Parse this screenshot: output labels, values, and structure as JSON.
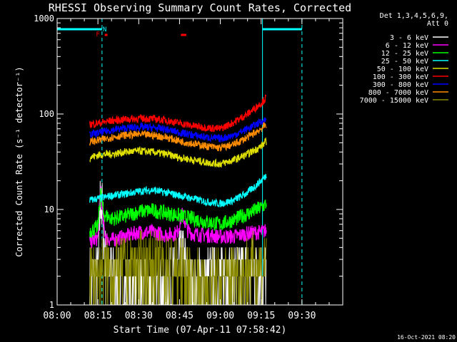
{
  "chart_data": {
    "type": "line",
    "title": "RHESSI Observing Summary Count Rates, Corrected",
    "xlabel": "Start Time (07-Apr-11 07:58:42)",
    "ylabel": "Corrected Count Rate (s⁻¹ detector⁻¹)",
    "x_ticks": [
      "08:00",
      "08:15",
      "08:30",
      "08:45",
      "09:00",
      "09:15",
      "09:30"
    ],
    "x_tick_minutes": [
      0,
      15,
      30,
      45,
      60,
      75,
      90
    ],
    "y_ticks": [
      "1",
      "10",
      "100",
      "1000"
    ],
    "y_tick_values": [
      1,
      10,
      100,
      1000
    ],
    "yscale": "log",
    "ylim": [
      1,
      1000
    ],
    "xlim_minutes": [
      0,
      105
    ],
    "grid": false,
    "legend": {
      "placement": "right",
      "header": [
        "Det 1,3,4,5,6,9,",
        "Att 0"
      ]
    },
    "series": [
      {
        "name": "3 - 6 keV",
        "color": "#ffffff",
        "x": [
          12,
          15,
          16,
          17,
          18,
          20,
          25,
          30,
          35,
          40,
          44,
          46,
          48,
          50,
          55,
          60,
          65,
          70,
          75,
          77
        ],
        "values": [
          1.8,
          2.0,
          16,
          6,
          2.5,
          2.0,
          1.6,
          1.4,
          1.4,
          1.4,
          2.2,
          3.2,
          2.0,
          1.6,
          1.8,
          2.0,
          2.0,
          2.2,
          2.4,
          2.2
        ]
      },
      {
        "name": "6 - 12 keV",
        "color": "#ff00ff",
        "x": [
          12,
          15,
          16,
          17,
          18,
          20,
          25,
          30,
          35,
          40,
          44,
          46,
          48,
          50,
          55,
          60,
          65,
          70,
          75,
          77
        ],
        "values": [
          4.5,
          5.0,
          18,
          7,
          5.0,
          4.8,
          5.2,
          5.8,
          5.8,
          5.4,
          5.6,
          9.0,
          6.0,
          5.5,
          5.4,
          5.2,
          5.2,
          5.6,
          5.8,
          6.0
        ]
      },
      {
        "name": "12 - 25 keV",
        "color": "#00ff00",
        "x": [
          12,
          15,
          16,
          17,
          20,
          25,
          30,
          35,
          40,
          45,
          50,
          55,
          60,
          65,
          70,
          75,
          77
        ],
        "values": [
          6.0,
          6.5,
          16,
          9,
          8.0,
          8.5,
          9.5,
          9.8,
          9.2,
          8.6,
          8.0,
          7.4,
          7.0,
          7.8,
          9.0,
          10.5,
          11.5
        ]
      },
      {
        "name": "25 - 50 keV",
        "color": "#00ffff",
        "x": [
          12,
          15,
          18,
          20,
          25,
          30,
          35,
          40,
          45,
          50,
          55,
          60,
          65,
          70,
          75,
          77
        ],
        "values": [
          12.5,
          13,
          13.5,
          14,
          14.5,
          15.5,
          16,
          15,
          14,
          13,
          12,
          11.5,
          12.5,
          15,
          20,
          23
        ]
      },
      {
        "name": "50 - 100 keV",
        "color": "#e0e000",
        "x": [
          12,
          15,
          18,
          20,
          25,
          30,
          35,
          40,
          45,
          50,
          55,
          60,
          65,
          70,
          75,
          77
        ],
        "values": [
          35,
          37,
          38,
          38,
          40,
          41,
          40,
          38,
          35,
          33,
          31,
          30,
          33,
          38,
          46,
          52
        ]
      },
      {
        "name": "100 - 300 keV",
        "color": "#ff0000",
        "x": [
          12,
          15,
          18,
          20,
          25,
          30,
          35,
          40,
          45,
          50,
          55,
          60,
          65,
          70,
          75,
          77
        ],
        "values": [
          78,
          80,
          83,
          85,
          88,
          90,
          89,
          86,
          80,
          75,
          72,
          70,
          82,
          100,
          130,
          150
        ]
      },
      {
        "name": "300 - 800 keV",
        "color": "#0000ff",
        "x": [
          12,
          15,
          18,
          20,
          25,
          30,
          35,
          40,
          45,
          50,
          55,
          60,
          65,
          70,
          75,
          77
        ],
        "values": [
          61,
          63,
          66,
          68,
          71,
          73,
          72,
          69,
          64,
          60,
          57,
          55,
          60,
          70,
          83,
          88
        ]
      },
      {
        "name": "800 - 7000 keV",
        "color": "#ff8c00",
        "x": [
          12,
          15,
          18,
          20,
          25,
          30,
          35,
          40,
          45,
          50,
          55,
          60,
          65,
          70,
          75,
          77
        ],
        "values": [
          51,
          53,
          55,
          57,
          60,
          61,
          60,
          57,
          52,
          49,
          46,
          44,
          48,
          57,
          70,
          78
        ]
      },
      {
        "name": "7000 - 15000 keV",
        "color": "#8b8b00",
        "x": [
          12,
          15,
          18,
          20,
          25,
          30,
          35,
          40,
          45,
          50,
          55,
          60,
          65,
          70,
          75,
          77
        ],
        "values": [
          2.0,
          2.2,
          2.3,
          2.3,
          2.4,
          2.5,
          2.6,
          2.6,
          2.2,
          1.8,
          1.6,
          1.8,
          2.0,
          2.4,
          2.6,
          2.8
        ]
      }
    ],
    "annotations": {
      "flags": [
        "F",
        "N"
      ],
      "flag_F_minute": 15.5,
      "flag_N_minute": 17.2,
      "saa_bars_minutes": [
        [
          0,
          16.5
        ],
        [
          75.5,
          90
        ]
      ],
      "night_lines_minutes": [
        0,
        16.5,
        75.5,
        90
      ],
      "flare_marks_minutes": [
        [
          17.5,
          18.5
        ],
        [
          45.5,
          47.5
        ]
      ]
    },
    "footer": "16-Oct-2021 08:20"
  },
  "colors": {
    "background": "#000000",
    "axis": "#ffffff",
    "saa": "#00ffff",
    "flag": "#ff0000"
  }
}
